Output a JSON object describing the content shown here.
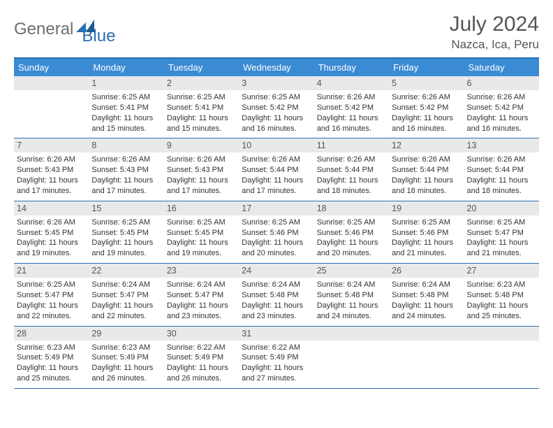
{
  "brand": {
    "part1": "General",
    "part2": "Blue"
  },
  "title": "July 2024",
  "location": "Nazca, Ica, Peru",
  "colors": {
    "header_bg": "#3b8bd4",
    "border": "#2a6fb5",
    "daynum_bg": "#e9e9e9",
    "text": "#333333",
    "title_text": "#555555"
  },
  "day_headers": [
    "Sunday",
    "Monday",
    "Tuesday",
    "Wednesday",
    "Thursday",
    "Friday",
    "Saturday"
  ],
  "weeks": [
    [
      {
        "n": "",
        "sr": "",
        "ss": "",
        "dl": ""
      },
      {
        "n": "1",
        "sr": "Sunrise: 6:25 AM",
        "ss": "Sunset: 5:41 PM",
        "dl": "Daylight: 11 hours and 15 minutes."
      },
      {
        "n": "2",
        "sr": "Sunrise: 6:25 AM",
        "ss": "Sunset: 5:41 PM",
        "dl": "Daylight: 11 hours and 15 minutes."
      },
      {
        "n": "3",
        "sr": "Sunrise: 6:25 AM",
        "ss": "Sunset: 5:42 PM",
        "dl": "Daylight: 11 hours and 16 minutes."
      },
      {
        "n": "4",
        "sr": "Sunrise: 6:26 AM",
        "ss": "Sunset: 5:42 PM",
        "dl": "Daylight: 11 hours and 16 minutes."
      },
      {
        "n": "5",
        "sr": "Sunrise: 6:26 AM",
        "ss": "Sunset: 5:42 PM",
        "dl": "Daylight: 11 hours and 16 minutes."
      },
      {
        "n": "6",
        "sr": "Sunrise: 6:26 AM",
        "ss": "Sunset: 5:42 PM",
        "dl": "Daylight: 11 hours and 16 minutes."
      }
    ],
    [
      {
        "n": "7",
        "sr": "Sunrise: 6:26 AM",
        "ss": "Sunset: 5:43 PM",
        "dl": "Daylight: 11 hours and 17 minutes."
      },
      {
        "n": "8",
        "sr": "Sunrise: 6:26 AM",
        "ss": "Sunset: 5:43 PM",
        "dl": "Daylight: 11 hours and 17 minutes."
      },
      {
        "n": "9",
        "sr": "Sunrise: 6:26 AM",
        "ss": "Sunset: 5:43 PM",
        "dl": "Daylight: 11 hours and 17 minutes."
      },
      {
        "n": "10",
        "sr": "Sunrise: 6:26 AM",
        "ss": "Sunset: 5:44 PM",
        "dl": "Daylight: 11 hours and 17 minutes."
      },
      {
        "n": "11",
        "sr": "Sunrise: 6:26 AM",
        "ss": "Sunset: 5:44 PM",
        "dl": "Daylight: 11 hours and 18 minutes."
      },
      {
        "n": "12",
        "sr": "Sunrise: 6:26 AM",
        "ss": "Sunset: 5:44 PM",
        "dl": "Daylight: 11 hours and 18 minutes."
      },
      {
        "n": "13",
        "sr": "Sunrise: 6:26 AM",
        "ss": "Sunset: 5:44 PM",
        "dl": "Daylight: 11 hours and 18 minutes."
      }
    ],
    [
      {
        "n": "14",
        "sr": "Sunrise: 6:26 AM",
        "ss": "Sunset: 5:45 PM",
        "dl": "Daylight: 11 hours and 19 minutes."
      },
      {
        "n": "15",
        "sr": "Sunrise: 6:25 AM",
        "ss": "Sunset: 5:45 PM",
        "dl": "Daylight: 11 hours and 19 minutes."
      },
      {
        "n": "16",
        "sr": "Sunrise: 6:25 AM",
        "ss": "Sunset: 5:45 PM",
        "dl": "Daylight: 11 hours and 19 minutes."
      },
      {
        "n": "17",
        "sr": "Sunrise: 6:25 AM",
        "ss": "Sunset: 5:46 PM",
        "dl": "Daylight: 11 hours and 20 minutes."
      },
      {
        "n": "18",
        "sr": "Sunrise: 6:25 AM",
        "ss": "Sunset: 5:46 PM",
        "dl": "Daylight: 11 hours and 20 minutes."
      },
      {
        "n": "19",
        "sr": "Sunrise: 6:25 AM",
        "ss": "Sunset: 5:46 PM",
        "dl": "Daylight: 11 hours and 21 minutes."
      },
      {
        "n": "20",
        "sr": "Sunrise: 6:25 AM",
        "ss": "Sunset: 5:47 PM",
        "dl": "Daylight: 11 hours and 21 minutes."
      }
    ],
    [
      {
        "n": "21",
        "sr": "Sunrise: 6:25 AM",
        "ss": "Sunset: 5:47 PM",
        "dl": "Daylight: 11 hours and 22 minutes."
      },
      {
        "n": "22",
        "sr": "Sunrise: 6:24 AM",
        "ss": "Sunset: 5:47 PM",
        "dl": "Daylight: 11 hours and 22 minutes."
      },
      {
        "n": "23",
        "sr": "Sunrise: 6:24 AM",
        "ss": "Sunset: 5:47 PM",
        "dl": "Daylight: 11 hours and 23 minutes."
      },
      {
        "n": "24",
        "sr": "Sunrise: 6:24 AM",
        "ss": "Sunset: 5:48 PM",
        "dl": "Daylight: 11 hours and 23 minutes."
      },
      {
        "n": "25",
        "sr": "Sunrise: 6:24 AM",
        "ss": "Sunset: 5:48 PM",
        "dl": "Daylight: 11 hours and 24 minutes."
      },
      {
        "n": "26",
        "sr": "Sunrise: 6:24 AM",
        "ss": "Sunset: 5:48 PM",
        "dl": "Daylight: 11 hours and 24 minutes."
      },
      {
        "n": "27",
        "sr": "Sunrise: 6:23 AM",
        "ss": "Sunset: 5:48 PM",
        "dl": "Daylight: 11 hours and 25 minutes."
      }
    ],
    [
      {
        "n": "28",
        "sr": "Sunrise: 6:23 AM",
        "ss": "Sunset: 5:49 PM",
        "dl": "Daylight: 11 hours and 25 minutes."
      },
      {
        "n": "29",
        "sr": "Sunrise: 6:23 AM",
        "ss": "Sunset: 5:49 PM",
        "dl": "Daylight: 11 hours and 26 minutes."
      },
      {
        "n": "30",
        "sr": "Sunrise: 6:22 AM",
        "ss": "Sunset: 5:49 PM",
        "dl": "Daylight: 11 hours and 26 minutes."
      },
      {
        "n": "31",
        "sr": "Sunrise: 6:22 AM",
        "ss": "Sunset: 5:49 PM",
        "dl": "Daylight: 11 hours and 27 minutes."
      },
      {
        "n": "",
        "sr": "",
        "ss": "",
        "dl": ""
      },
      {
        "n": "",
        "sr": "",
        "ss": "",
        "dl": ""
      },
      {
        "n": "",
        "sr": "",
        "ss": "",
        "dl": ""
      }
    ]
  ]
}
